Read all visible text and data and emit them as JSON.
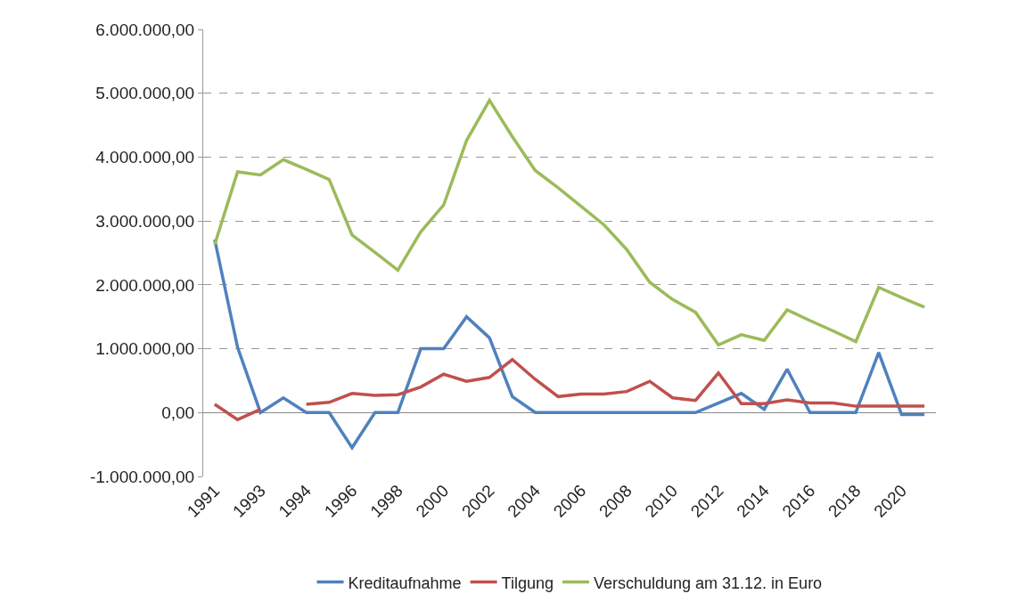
{
  "chart_data": {
    "type": "line",
    "categories": [
      "1991",
      null,
      "1993",
      null,
      "1994",
      null,
      "1996",
      null,
      "1998",
      null,
      "2000",
      null,
      "2002",
      null,
      "2004",
      null,
      "2006",
      null,
      "2008",
      null,
      "2010",
      null,
      "2012",
      null,
      "2014",
      null,
      "2016",
      null,
      "2018",
      null,
      "2020",
      null
    ],
    "series": [
      {
        "name": "Kreditaufnahme",
        "color": "#4f81bd",
        "values": [
          2710000,
          1020000,
          0,
          230000,
          0,
          0,
          -550000,
          0,
          0,
          1000000,
          1000000,
          1500000,
          1170000,
          250000,
          0,
          0,
          0,
          0,
          0,
          0,
          0,
          0,
          150000,
          300000,
          50000,
          680000,
          0,
          0,
          0,
          940000,
          -30000,
          -30000
        ]
      },
      {
        "name": "Tilgung",
        "color": "#c0504d",
        "values": [
          130000,
          -110000,
          50000,
          null,
          130000,
          160000,
          300000,
          270000,
          280000,
          400000,
          600000,
          490000,
          550000,
          830000,
          520000,
          250000,
          290000,
          290000,
          330000,
          490000,
          230000,
          190000,
          620000,
          140000,
          140000,
          200000,
          150000,
          150000,
          100000,
          100000,
          100000,
          100000
        ]
      },
      {
        "name": "Verschuldung am 31.12. in Euro",
        "color": "#9bbb59",
        "values": [
          2630000,
          3770000,
          3720000,
          3960000,
          3810000,
          3650000,
          2780000,
          2510000,
          2230000,
          2830000,
          3250000,
          4260000,
          4890000,
          4320000,
          3790000,
          3520000,
          3230000,
          2940000,
          2550000,
          2040000,
          1770000,
          1570000,
          1060000,
          1220000,
          1130000,
          1610000,
          1440000,
          1280000,
          1110000,
          1960000,
          1800000,
          1650000
        ]
      }
    ],
    "ylim": [
      -1000000,
      6000000
    ],
    "yticks": [
      {
        "value": -1000000,
        "label": "-1.000.000,00"
      },
      {
        "value": 0,
        "label": "0,00"
      },
      {
        "value": 1000000,
        "label": "1.000.000,00"
      },
      {
        "value": 2000000,
        "label": "2.000.000,00"
      },
      {
        "value": 3000000,
        "label": "3.000.000,00"
      },
      {
        "value": 4000000,
        "label": "4.000.000,00"
      },
      {
        "value": 5000000,
        "label": "5.000.000,00"
      },
      {
        "value": 6000000,
        "label": "6.000.000,00"
      }
    ],
    "grid": "y",
    "legend": "bottom",
    "marker": "none",
    "line_style": "solid"
  }
}
